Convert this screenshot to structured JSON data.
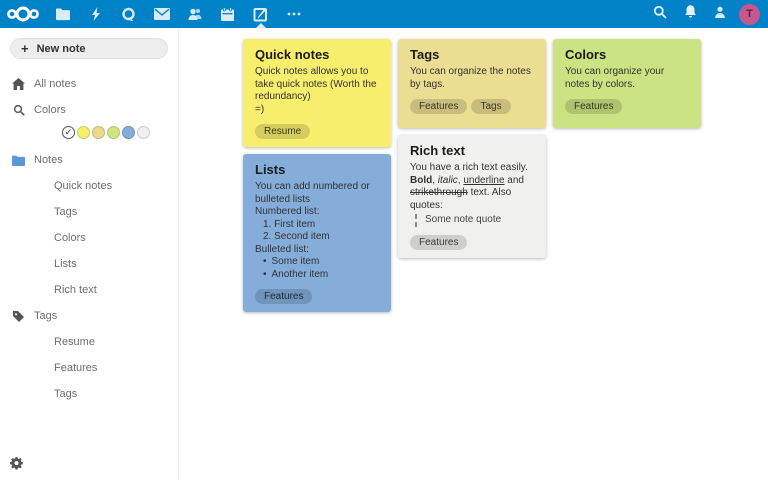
{
  "header": {
    "bar_color": "#0082c9",
    "logo_icon": "nextcloud-logo",
    "apps": [
      {
        "id": "files",
        "icon": "folder-icon"
      },
      {
        "id": "activity",
        "icon": "lightning-icon"
      },
      {
        "id": "talk",
        "icon": "talk-icon"
      },
      {
        "id": "mail",
        "icon": "mail-icon"
      },
      {
        "id": "contacts",
        "icon": "people-icon"
      },
      {
        "id": "calendar",
        "icon": "calendar-icon"
      },
      {
        "id": "notes",
        "icon": "notes-icon",
        "active": true
      },
      {
        "id": "more-apps",
        "icon": "ellipsis-icon"
      }
    ],
    "right_items": [
      {
        "id": "search",
        "icon": "search-icon"
      },
      {
        "id": "notifications",
        "icon": "bell-icon"
      },
      {
        "id": "contacts-menu",
        "icon": "person-icon"
      }
    ],
    "avatar": {
      "initial": "T",
      "color": "#c4588e"
    }
  },
  "sidebar": {
    "new_note_label": "New note",
    "all_notes_label": "All notes",
    "colors_label": "Colors",
    "swatches": [
      {
        "color": "#ffffff",
        "selected": true
      },
      {
        "color": "#f7ee6e",
        "selected": false
      },
      {
        "color": "#ebd88a",
        "selected": false
      },
      {
        "color": "#cfe67f",
        "selected": false
      },
      {
        "color": "#84add9",
        "selected": false
      },
      {
        "color": "#efefef",
        "selected": false
      }
    ],
    "sections": [
      {
        "label": "Notes",
        "icon": "folder-icon",
        "children": [
          "Quick notes",
          "Tags",
          "Colors",
          "Lists",
          "Rich text"
        ]
      },
      {
        "label": "Tags",
        "icon": "tag-icon",
        "children": [
          "Resume",
          "Features",
          "Tags"
        ]
      }
    ],
    "settings_icon": "gear-icon"
  },
  "notes": [
    {
      "title": "Quick notes",
      "color": "#f7ee6e",
      "tags": [
        "Resume"
      ],
      "body": [
        {
          "type": "p",
          "text": "Quick notes allows you to take quick notes (Worth the redundancy)"
        },
        {
          "type": "p",
          "text": "=)"
        }
      ]
    },
    {
      "title": "Tags",
      "color": "#ebdd92",
      "tags": [
        "Features",
        "Tags"
      ],
      "body": [
        {
          "type": "p",
          "text": "You can organize the notes by tags."
        }
      ]
    },
    {
      "title": "Colors",
      "color": "#cbe382",
      "tags": [
        "Features"
      ],
      "body": [
        {
          "type": "p",
          "text": "You can organize your notes by colors."
        }
      ]
    },
    {
      "title": "Lists",
      "color": "#84add9",
      "tags": [
        "Features"
      ],
      "body": [
        {
          "type": "p",
          "text": "You can add numbered or bulleted lists"
        },
        {
          "type": "p",
          "text": "Numbered list:"
        },
        {
          "type": "num",
          "marker": "1.",
          "text": "First item"
        },
        {
          "type": "num",
          "marker": "2.",
          "text": "Second item"
        },
        {
          "type": "p",
          "text": "Bulleted list:"
        },
        {
          "type": "bullet",
          "text": "Some item"
        },
        {
          "type": "bullet",
          "text": "Another item"
        }
      ]
    },
    {
      "title": "Rich text",
      "color": "#f0f0ef",
      "tags": [
        "Features"
      ],
      "body": [
        {
          "type": "p",
          "runs": [
            {
              "t": "You have a rich text easily.  "
            },
            {
              "t": "Bold",
              "b": true
            },
            {
              "t": ", "
            },
            {
              "t": "italic",
              "i": true
            },
            {
              "t": ", "
            },
            {
              "t": "underline",
              "u": true
            },
            {
              "t": " and "
            },
            {
              "t": "strikethrough",
              "strike": true
            },
            {
              "t": " text. Also quotes:"
            }
          ]
        },
        {
          "type": "quote",
          "text": "Some note quote"
        }
      ]
    }
  ]
}
